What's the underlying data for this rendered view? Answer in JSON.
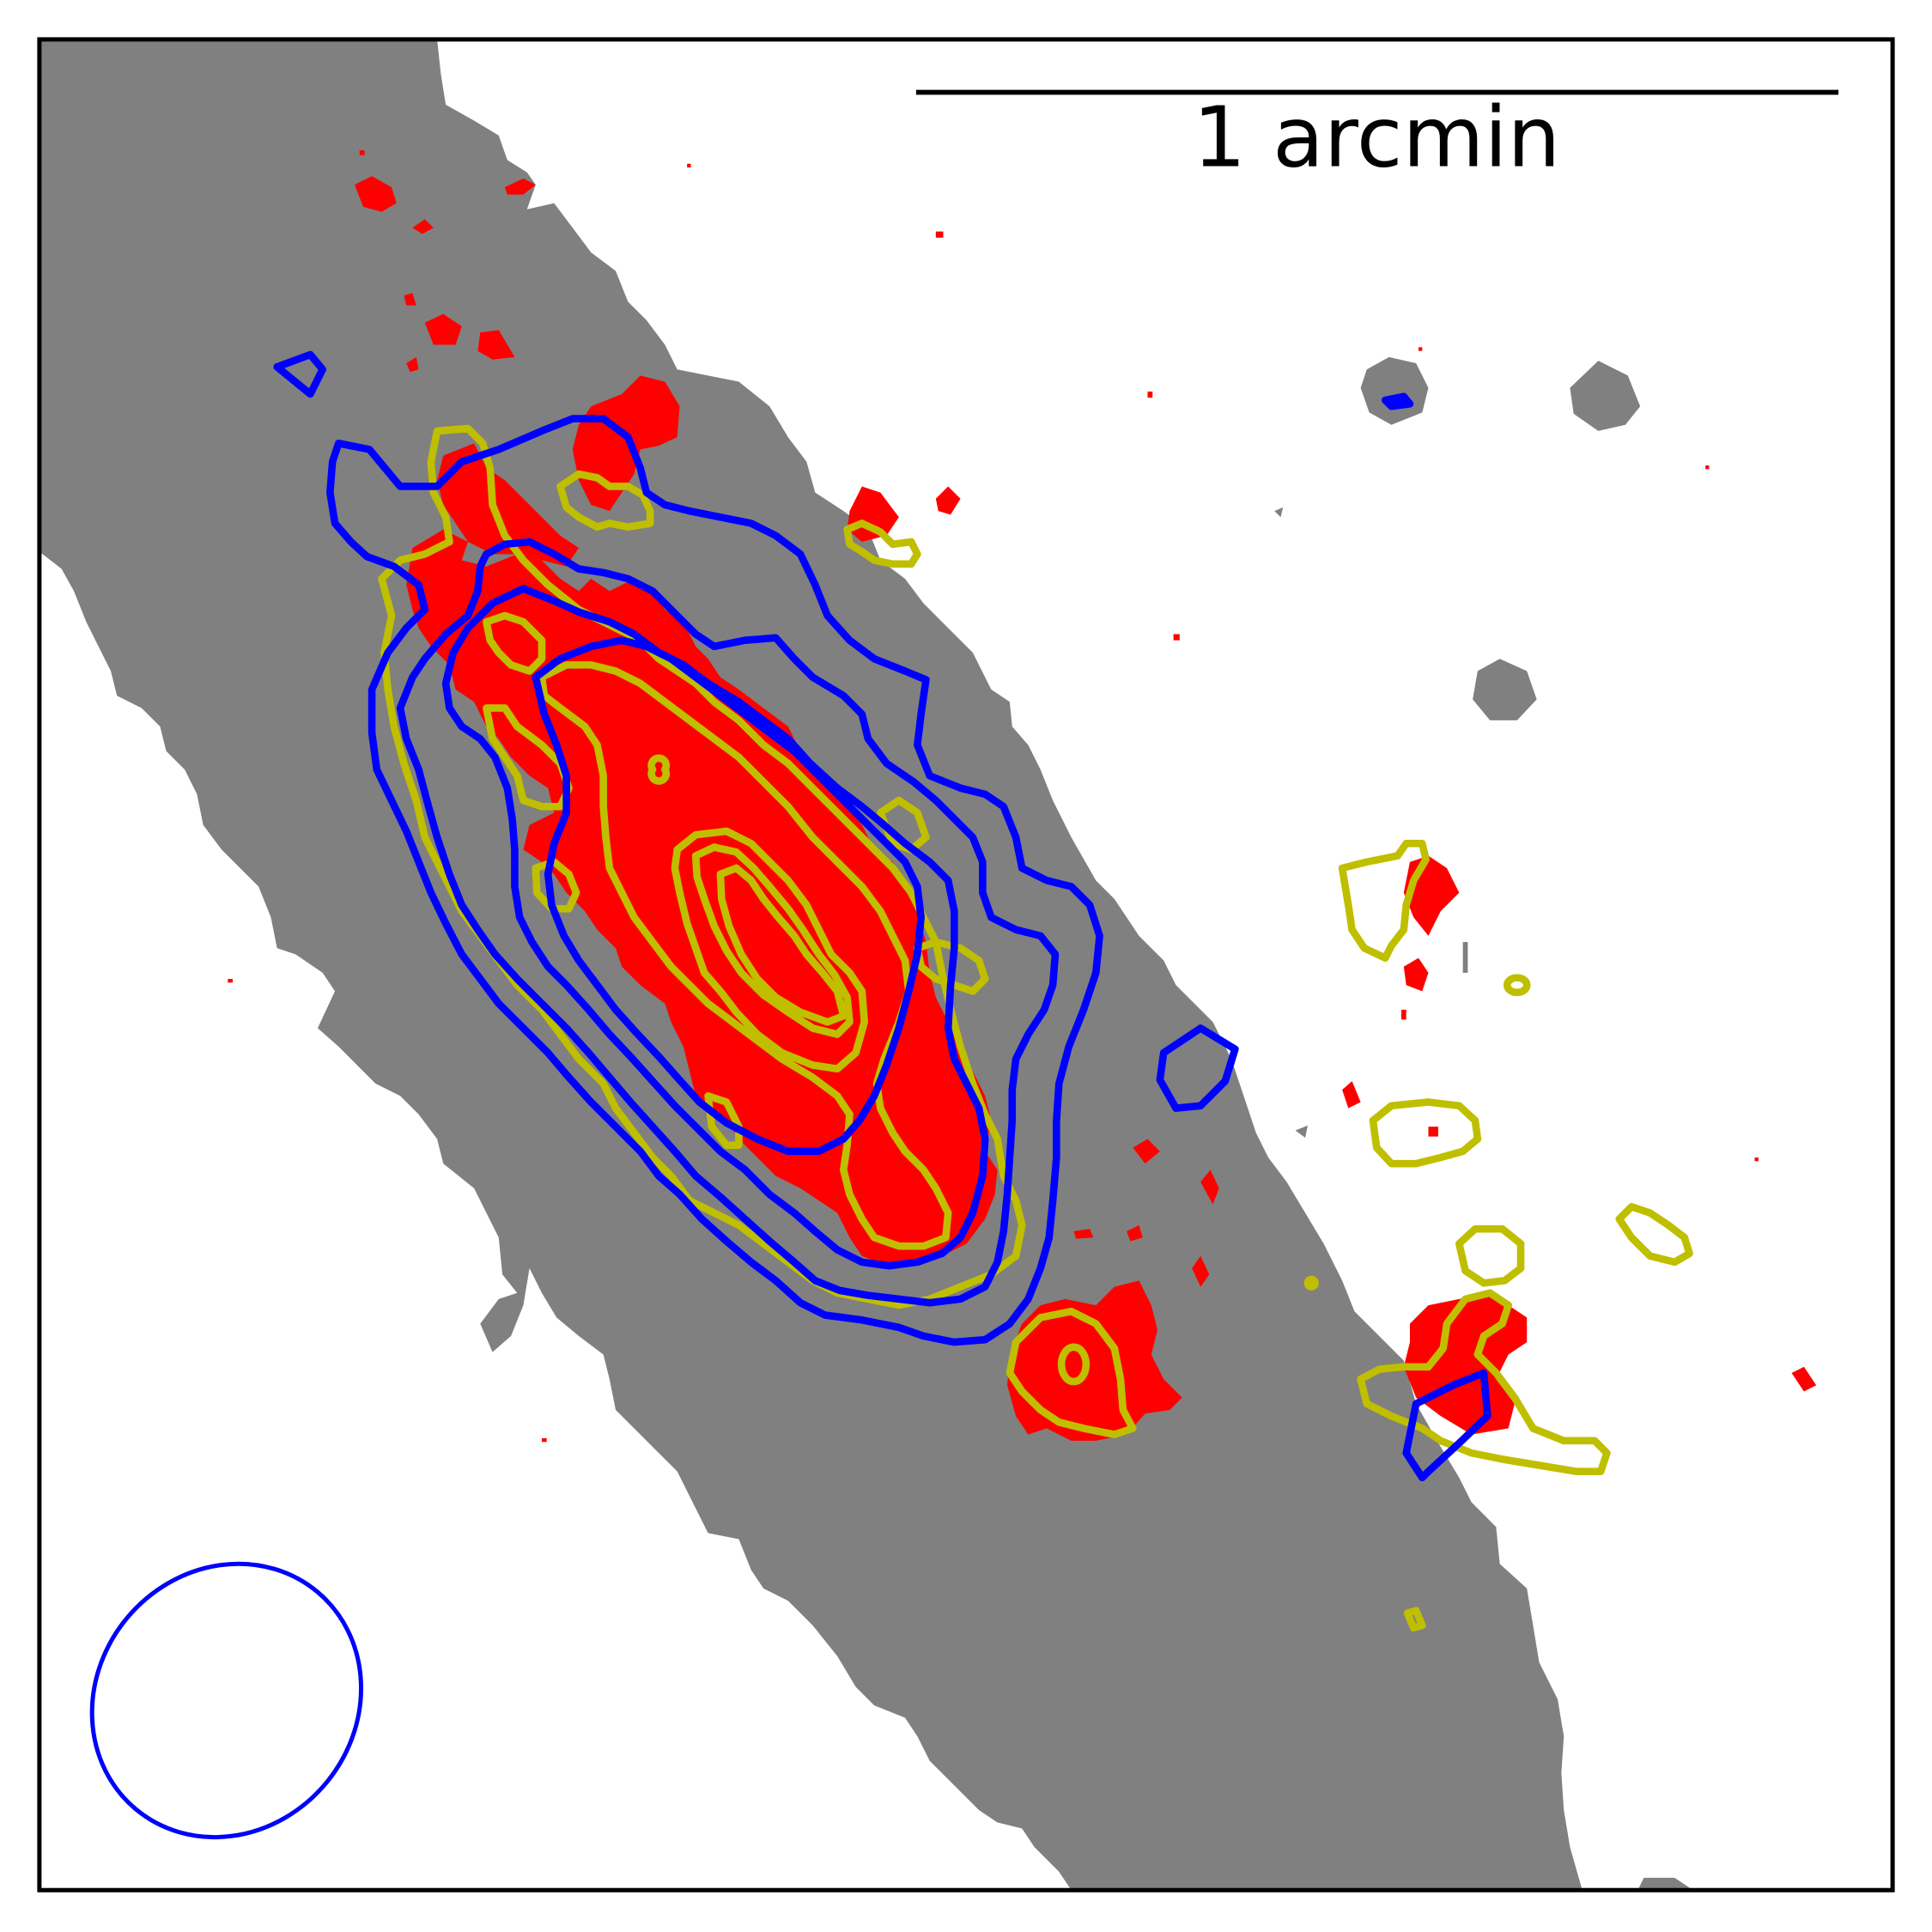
{
  "figure": {
    "scale_bar": {
      "label": "1 arcmin"
    },
    "colors": {
      "mask_fill": "#808080",
      "emission_fill": "#ff0000",
      "contour_yellow": "#bfbf00",
      "contour_blue": "#0000ff",
      "beam": "#0000ff",
      "frame": "#000000",
      "background": "#ffffff"
    }
  }
}
